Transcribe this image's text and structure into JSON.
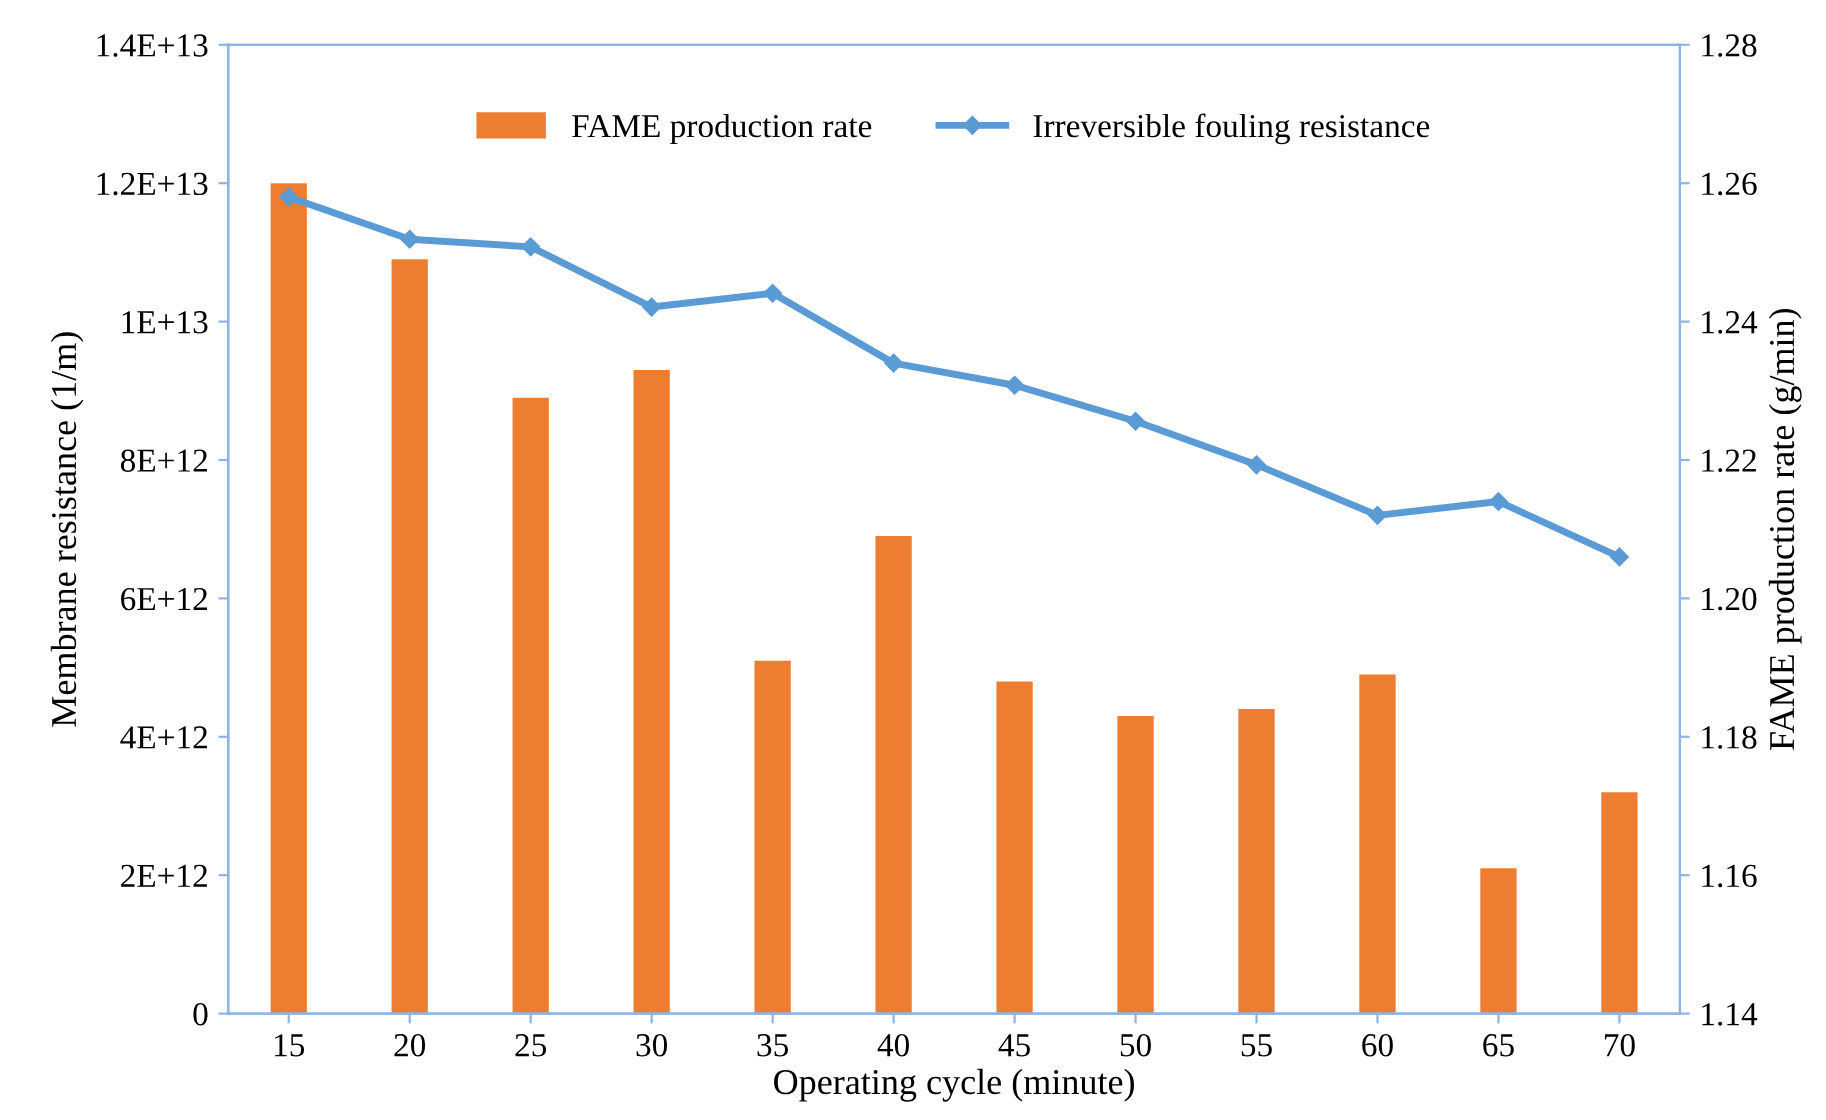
{
  "chart_data": {
    "type": "bar",
    "xlabel": "Operating cycle (minute)",
    "ylabel": "Membrane resistance (1/m)",
    "y2label": "FAME production rate (g/min)",
    "categories": [
      "15",
      "20",
      "25",
      "30",
      "35",
      "40",
      "45",
      "50",
      "55",
      "60",
      "65",
      "70"
    ],
    "series": [
      {
        "name": "FAME production rate",
        "axis": "y2",
        "color": "#ed7d31",
        "values": [
          1.26,
          1.249,
          1.229,
          1.233,
          1.191,
          1.209,
          1.188,
          1.183,
          1.184,
          1.189,
          1.161,
          1.172
        ]
      },
      {
        "name": "Irreversible fouling resistance",
        "type": "line",
        "color": "#5b9bd5",
        "marker": "diamond",
        "line_style": "solid",
        "values": [
          11800000000000.0,
          11190000000000.0,
          11080000000000.0,
          10210000000000.0,
          10410000000000.0,
          9400000000000.0,
          9080000000000.0,
          8560000000000.0,
          7930000000000.0,
          7200000000000.0,
          7400000000000.0,
          6600000000000.0
        ]
      }
    ],
    "ylim": [
      0,
      14000000000000.0
    ],
    "yticks": [
      0,
      {
        "value": 2000000000000.0,
        "label": "2E+12"
      },
      {
        "value": 4000000000000.0,
        "label": "4E+12"
      },
      {
        "value": 6000000000000.0,
        "label": "6E+12"
      },
      {
        "value": 8000000000000.0,
        "label": "8E+12"
      },
      {
        "value": 10000000000000.0,
        "label": "1E+13"
      },
      {
        "value": 12000000000000.0,
        "label": "1.2E+13"
      },
      {
        "value": 14000000000000.0,
        "label": "1.4E+13"
      }
    ],
    "y2lim": [
      1.14,
      1.28
    ],
    "y2ticks": [
      {
        "value": 1.14,
        "label": "1.14"
      },
      {
        "value": 1.16,
        "label": "1.16"
      },
      {
        "value": 1.18,
        "label": "1.18"
      },
      {
        "value": 1.2,
        "label": "1.20"
      },
      {
        "value": 1.22,
        "label": "1.22"
      },
      {
        "value": 1.24,
        "label": "1.24"
      },
      {
        "value": 1.26,
        "label": "1.26"
      },
      {
        "value": 1.28,
        "label": "1.28"
      }
    ],
    "grid": false,
    "legend": "top"
  }
}
